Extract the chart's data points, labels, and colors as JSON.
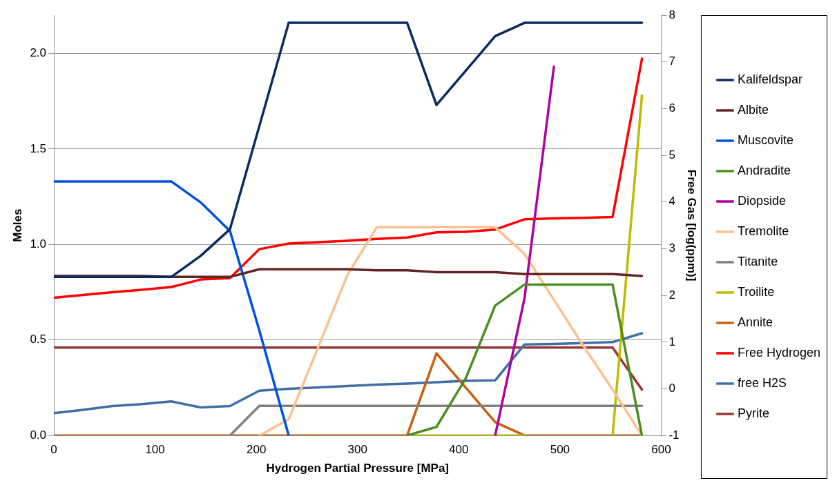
{
  "chart_data": {
    "type": "line",
    "xlabel": "Hydrogen Partial Pressure [MPa]",
    "ylabel": "Moles",
    "y2label": "Free Gas [log(ppm)]",
    "x": [
      0,
      29,
      58,
      87,
      116,
      145,
      174,
      203,
      232,
      261,
      290,
      319,
      349,
      378,
      407,
      436,
      465,
      494,
      523,
      552,
      581
    ],
    "xlim": [
      0,
      600
    ],
    "xticks": [
      0,
      100,
      200,
      300,
      400,
      500,
      600
    ],
    "ylim": [
      0,
      2.2
    ],
    "yticks": [
      {
        "value": 0,
        "label": "0.0"
      },
      {
        "value": 0.5,
        "label": "0.5"
      },
      {
        "value": 1,
        "label": "1.0"
      },
      {
        "value": 1.5,
        "label": "1.5"
      },
      {
        "value": 2,
        "label": "2.0"
      }
    ],
    "y2lim": [
      -1,
      8
    ],
    "y2ticks": [
      -1,
      0,
      1,
      2,
      3,
      4,
      5,
      6,
      7,
      8
    ],
    "grid": "y",
    "legend": "right",
    "marker": "none",
    "line_style": "solid",
    "series": [
      {
        "name": "Kalifeldspar",
        "color": "#0b2a5e",
        "values": [
          0.83,
          0.83,
          0.83,
          0.83,
          0.83,
          0.94,
          1.08,
          1.62,
          2.16,
          2.16,
          2.16,
          2.16,
          2.16,
          1.73,
          1.91,
          2.09,
          2.16,
          2.16,
          2.16,
          2.16,
          2.16
        ]
      },
      {
        "name": "Albite",
        "color": "#632523",
        "values": [
          0.835,
          0.835,
          0.835,
          0.835,
          0.83,
          0.83,
          0.83,
          0.87,
          0.87,
          0.87,
          0.87,
          0.865,
          0.865,
          0.855,
          0.855,
          0.855,
          0.845,
          0.845,
          0.845,
          0.845,
          0.835
        ]
      },
      {
        "name": "Muscovite",
        "color": "#0050e0",
        "values": [
          1.33,
          1.33,
          1.33,
          1.33,
          1.33,
          1.22,
          1.07,
          0.55,
          0,
          null,
          null,
          null,
          null,
          null,
          null,
          null,
          null,
          null,
          null,
          null,
          null
        ]
      },
      {
        "name": "Andradite",
        "color": "#4a8e21",
        "values": [
          null,
          null,
          null,
          null,
          null,
          null,
          null,
          null,
          null,
          null,
          null,
          null,
          0,
          0.045,
          0.3,
          0.68,
          0.79,
          0.79,
          0.79,
          0.79,
          0
        ]
      },
      {
        "name": "Diopside",
        "color": "#b0009f",
        "values": [
          null,
          null,
          null,
          null,
          null,
          null,
          null,
          null,
          null,
          null,
          null,
          null,
          null,
          null,
          null,
          0,
          0.72,
          1.93,
          null,
          null,
          null
        ]
      },
      {
        "name": "Tremolite",
        "color": "#fac090",
        "values": [
          null,
          null,
          null,
          null,
          null,
          null,
          null,
          0,
          0.085,
          0.46,
          0.84,
          1.09,
          1.09,
          1.09,
          1.09,
          1.09,
          0.95,
          0.71,
          0.47,
          0.24,
          0
        ]
      },
      {
        "name": "Titanite",
        "color": "#808080",
        "values": [
          null,
          null,
          null,
          null,
          null,
          null,
          0,
          0.155,
          0.155,
          0.155,
          0.155,
          0.155,
          0.155,
          0.155,
          0.155,
          0.155,
          0.155,
          0.155,
          0.155,
          0.155,
          0.155
        ]
      },
      {
        "name": "Troilite",
        "color": "#bcbc00",
        "values": [
          null,
          null,
          null,
          null,
          null,
          null,
          null,
          null,
          null,
          null,
          null,
          null,
          0,
          0,
          0,
          0,
          0,
          null,
          null,
          0,
          1.78
        ]
      },
      {
        "name": "Annite",
        "color": "#c86010",
        "values": [
          0,
          0,
          0,
          0,
          0,
          0,
          0,
          0,
          0,
          0,
          0,
          0,
          0,
          0.43,
          0.25,
          0.07,
          0,
          0,
          0,
          0,
          0
        ]
      },
      {
        "name": "Free Hydrogen",
        "color": "#ff0000",
        "axis": "y2",
        "values": [
          1.95,
          2.01,
          2.07,
          2.12,
          2.18,
          2.34,
          2.37,
          2.99,
          3.11,
          3.14,
          3.17,
          3.21,
          3.24,
          3.35,
          3.36,
          3.41,
          3.63,
          3.65,
          3.66,
          3.68,
          7.07
        ]
      },
      {
        "name": "free H2S",
        "color": "#3f6ea6",
        "axis": "y2",
        "values": [
          -0.52,
          -0.45,
          -0.37,
          -0.33,
          -0.27,
          -0.4,
          -0.37,
          -0.04,
          0,
          0.03,
          0.06,
          0.09,
          0.11,
          0.14,
          0.17,
          0.18,
          0.95,
          0.96,
          0.98,
          1,
          1.19
        ]
      },
      {
        "name": "Pyrite",
        "color": "#953735",
        "values": [
          0.46,
          0.46,
          0.46,
          0.46,
          0.46,
          0.46,
          0.46,
          0.46,
          0.46,
          0.46,
          0.46,
          0.46,
          0.46,
          0.46,
          0.46,
          0.46,
          0.46,
          0.46,
          0.46,
          0.46,
          0.24
        ]
      }
    ]
  }
}
